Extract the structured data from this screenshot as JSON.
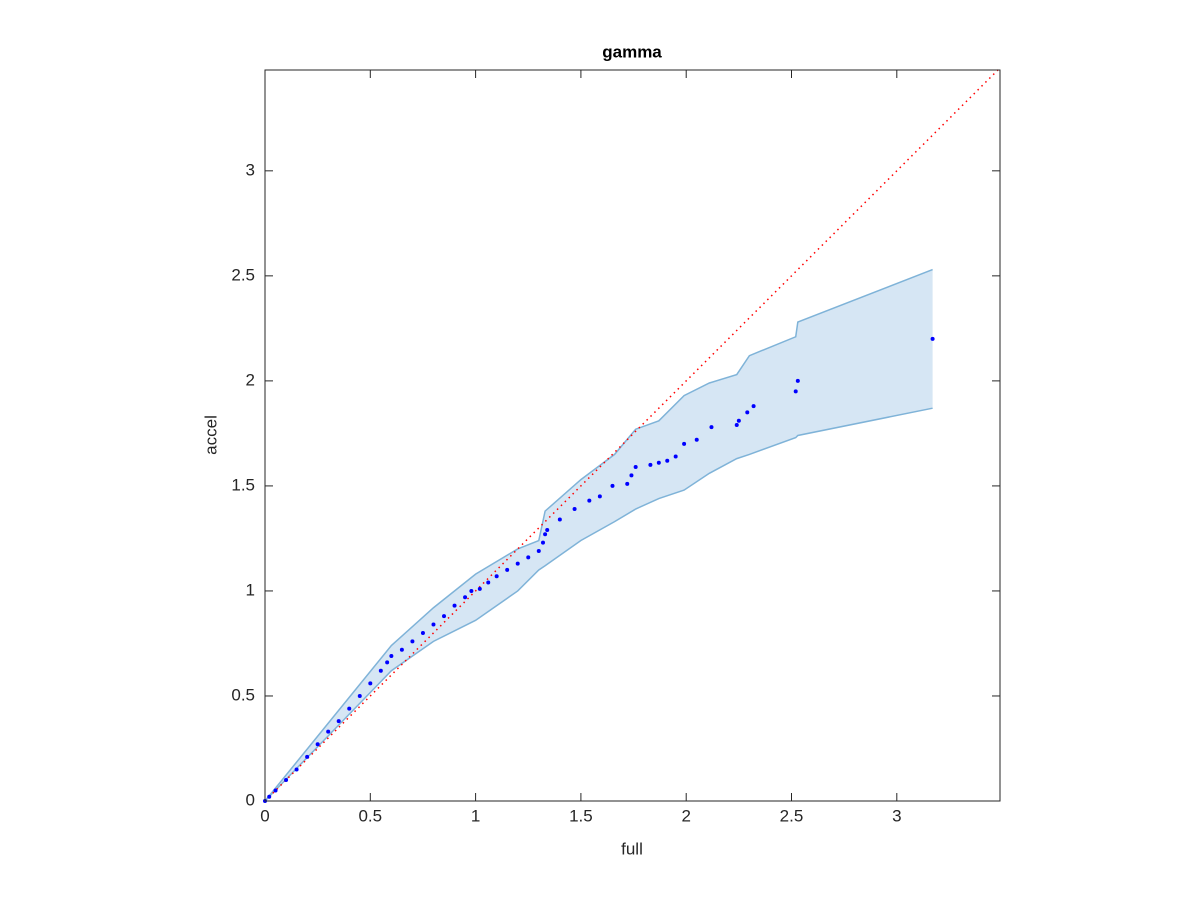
{
  "chart_data": {
    "type": "scatter",
    "title": "gamma",
    "x_label": "full",
    "y_label": "accel",
    "x": [
      0,
      0.02,
      0.05,
      0.1,
      0.15,
      0.2,
      0.25,
      0.3,
      0.35,
      0.4,
      0.45,
      0.5,
      0.55,
      0.58,
      0.6,
      0.65,
      0.7,
      0.75,
      0.8,
      0.85,
      0.9,
      0.95,
      0.98,
      1.02,
      1.06,
      1.1,
      1.15,
      1.2,
      1.25,
      1.3,
      1.32,
      1.33,
      1.34,
      1.4,
      1.47,
      1.54,
      1.59,
      1.65,
      1.72,
      1.74,
      1.76,
      1.83,
      1.87,
      1.91,
      1.95,
      1.99,
      2.05,
      2.12,
      2.24,
      2.25,
      2.29,
      2.32,
      2.52,
      2.53,
      3.17
    ],
    "y": [
      0,
      0.02,
      0.05,
      0.1,
      0.15,
      0.21,
      0.27,
      0.33,
      0.38,
      0.44,
      0.5,
      0.56,
      0.62,
      0.66,
      0.69,
      0.72,
      0.76,
      0.8,
      0.84,
      0.88,
      0.93,
      0.97,
      1.0,
      1.01,
      1.04,
      1.07,
      1.1,
      1.13,
      1.16,
      1.19,
      1.23,
      1.27,
      1.29,
      1.34,
      1.39,
      1.43,
      1.45,
      1.5,
      1.51,
      1.55,
      1.59,
      1.6,
      1.61,
      1.62,
      1.64,
      1.7,
      1.72,
      1.78,
      1.79,
      1.81,
      1.85,
      1.88,
      1.95,
      2.0,
      2.2
    ],
    "color": "#0000ff",
    "band": {
      "x": [
        0,
        0.3,
        0.6,
        0.8,
        1.0,
        1.2,
        1.3,
        1.33,
        1.5,
        1.66,
        1.76,
        1.87,
        1.99,
        2.11,
        2.24,
        2.3,
        2.52,
        2.53,
        3.17
      ],
      "upper": [
        0,
        0.37,
        0.74,
        0.92,
        1.08,
        1.2,
        1.24,
        1.38,
        1.53,
        1.65,
        1.77,
        1.81,
        1.93,
        1.99,
        2.03,
        2.12,
        2.21,
        2.28,
        2.53
      ],
      "lower": [
        0,
        0.31,
        0.62,
        0.76,
        0.86,
        1.0,
        1.1,
        1.12,
        1.24,
        1.33,
        1.39,
        1.44,
        1.48,
        1.56,
        1.63,
        1.65,
        1.73,
        1.74,
        1.87
      ],
      "color": "#d6e6f4",
      "edge_color": "#7fb3d8"
    },
    "reference_line": {
      "x": [
        0,
        3.49
      ],
      "y": [
        0,
        3.49
      ],
      "color": "#ff0000"
    },
    "xlim": [
      0,
      3.49
    ],
    "ylim": [
      0,
      3.48
    ],
    "xticks": [
      0,
      0.5,
      1,
      1.5,
      2,
      2.5,
      3
    ],
    "yticks": [
      0,
      0.5,
      1,
      1.5,
      2,
      2.5,
      3
    ]
  }
}
